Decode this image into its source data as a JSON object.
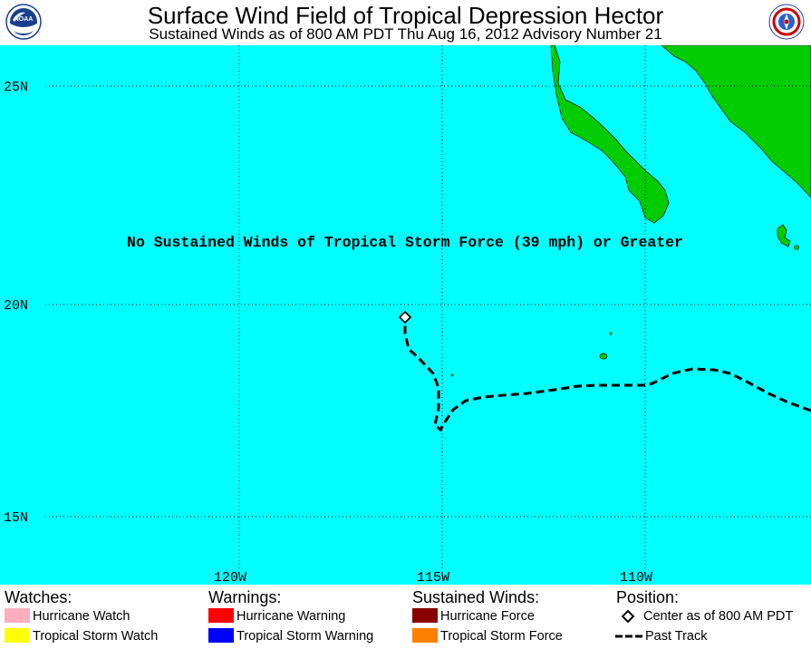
{
  "header": {
    "title": "Surface Wind Field of Tropical Depression Hector",
    "subtitle": "Sustained Winds as of 800 AM PDT Thu Aug 16, 2012    Advisory Number 21",
    "left_logo": "noaa-logo",
    "right_logo": "national-weather-service-logo"
  },
  "map": {
    "ocean_color": "#00ffff",
    "land_color": "#00cc00",
    "latitude_labels": [
      "25N",
      "20N",
      "15N"
    ],
    "longitude_labels": [
      "120W",
      "115W",
      "110W"
    ],
    "notice": "No Sustained Winds of Tropical Storm Force (39 mph) or Greater"
  },
  "legend": {
    "watches": {
      "heading": "Watches:",
      "items": [
        {
          "label": "Hurricane Watch",
          "color": "#ffaec0"
        },
        {
          "label": "Tropical Storm Watch",
          "color": "#ffff00"
        }
      ]
    },
    "warnings": {
      "heading": "Warnings:",
      "items": [
        {
          "label": "Hurricane Warning",
          "color": "#ff0000"
        },
        {
          "label": "Tropical Storm Warning",
          "color": "#0000ff"
        }
      ]
    },
    "winds": {
      "heading": "Sustained Winds:",
      "items": [
        {
          "label": "Hurricane Force",
          "color": "#880000"
        },
        {
          "label": "Tropical Storm Force",
          "color": "#ff8000"
        }
      ]
    },
    "position": {
      "heading": "Position:",
      "center_label": "Center as of 800 AM PDT",
      "track_label": "Past Track"
    }
  }
}
